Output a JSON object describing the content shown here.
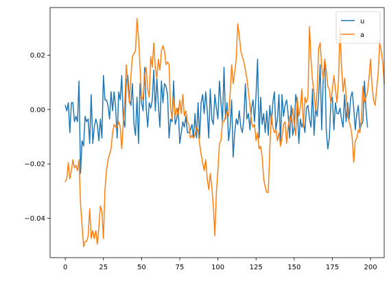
{
  "chart_data": {
    "type": "line",
    "title": "",
    "xlabel": "",
    "ylabel": "",
    "xlim": [
      -9.95,
      208.95
    ],
    "ylim": [
      -0.0545,
      0.0375
    ],
    "xticks": [
      0,
      25,
      50,
      75,
      100,
      125,
      150,
      175,
      200
    ],
    "yticks": [
      -0.04,
      -0.02,
      0.0,
      0.02
    ],
    "xtick_labels": [
      "0",
      "25",
      "50",
      "75",
      "100",
      "125",
      "150",
      "175",
      "200"
    ],
    "ytick_labels": [
      "−0.04",
      "−0.02",
      "0.00",
      "0.02"
    ],
    "grid": false,
    "legend_position": "upper right",
    "series": [
      {
        "name": "u",
        "color": "#1f77b4",
        "values": [
          0.0015,
          -0.0005,
          0.0025,
          -0.0085,
          0.0025,
          0.0025,
          -0.0045,
          -0.0025,
          -0.0045,
          0.0105,
          -0.0235,
          -0.0115,
          -0.0135,
          -0.0025,
          -0.0045,
          -0.0035,
          -0.0125,
          0.0055,
          -0.0125,
          -0.0065,
          -0.0035,
          -0.0055,
          -0.0115,
          -0.0035,
          -0.0105,
          0.0125,
          0.0035,
          0.0035,
          0.0015,
          -0.0035,
          0.0065,
          -0.0005,
          0.0065,
          0.0005,
          -0.0105,
          0.0065,
          0.0035,
          0.0125,
          -0.0035,
          -0.0065,
          0.0105,
          0.0125,
          0.0035,
          0.0015,
          0.0095,
          -0.0055,
          -0.0095,
          0.0045,
          -0.0125,
          0.0095,
          0.0025,
          -0.0005,
          0.0155,
          0.0005,
          -0.0065,
          0.0025,
          0.0005,
          0.0035,
          0.0145,
          -0.0005,
          0.0115,
          0.0015,
          -0.0065,
          0.0105,
          0.0025,
          0.0095,
          0.0085,
          0.0055,
          -0.0105,
          -0.0035,
          -0.0045,
          0.0105,
          -0.0055,
          -0.0035,
          0.0005,
          -0.0125,
          -0.0085,
          -0.0045,
          -0.0065,
          -0.0025,
          -0.0085,
          -0.0085,
          -0.0075,
          -0.0055,
          -0.0105,
          -0.0015,
          -0.0105,
          0.0025,
          -0.0105,
          0.0025,
          0.0055,
          -0.0015,
          0.0065,
          -0.0005,
          -0.0105,
          0.0075,
          -0.0035,
          -0.0055,
          0.0055,
          0.0005,
          -0.0035,
          0.0105,
          0.0025,
          -0.0045,
          0.0155,
          -0.0035,
          0.0025,
          -0.0115,
          -0.0065,
          0.0035,
          -0.0175,
          -0.0085,
          -0.0035,
          -0.0055,
          -0.0005,
          -0.0065,
          -0.0085,
          -0.0035,
          0.0095,
          -0.0035,
          -0.0015,
          -0.0075,
          0.0005,
          0.0035,
          -0.0045,
          0.0055,
          0.0185,
          -0.0105,
          0.0045,
          -0.0055,
          -0.0015,
          -0.0085,
          -0.0005,
          -0.0095,
          0.0015,
          -0.0055,
          0.0025,
          0.0065,
          -0.0075,
          -0.0035,
          0.0055,
          -0.0125,
          0.0055,
          -0.0025,
          0.0015,
          0.0035,
          -0.0015,
          -0.0105,
          0.0015,
          -0.0095,
          -0.0065,
          0.0055,
          0.0015,
          -0.0125,
          -0.0035,
          -0.0065,
          -0.0045,
          -0.0085,
          0.0005,
          0.0015,
          -0.0035,
          -0.0065,
          0.0075,
          -0.0095,
          0.0005,
          -0.0025,
          0.0045,
          0.0165,
          -0.0075,
          0.0115,
          0.0185,
          -0.0075,
          -0.0145,
          -0.0105,
          0.0025,
          0.0045,
          -0.0075,
          0.0025,
          -0.0015,
          -0.0015,
          0.0005,
          -0.0035,
          -0.0065,
          0.0055,
          -0.0045,
          0.0025,
          -0.0035,
          0.0045,
          0.0065,
          0.0005,
          -0.0075,
          -0.0015,
          0.0015,
          -0.0075,
          -0.0055,
          -0.0045,
          0.0105,
          0.0005,
          -0.0065
        ]
      },
      {
        "name": "a",
        "color": "#ff7f0e",
        "values": [
          -0.0265,
          -0.0255,
          -0.0195,
          -0.0255,
          -0.0225,
          -0.0185,
          -0.0215,
          -0.0205,
          -0.0225,
          -0.0185,
          -0.0345,
          -0.0425,
          -0.0505,
          -0.0485,
          -0.0485,
          -0.0465,
          -0.0365,
          -0.0475,
          -0.0445,
          -0.0475,
          -0.0445,
          -0.0495,
          -0.0435,
          -0.0355,
          -0.0375,
          -0.0475,
          -0.0295,
          -0.0225,
          -0.0185,
          -0.0165,
          -0.0145,
          -0.0085,
          -0.0055,
          -0.0065,
          -0.0065,
          -0.0045,
          -0.0065,
          -0.0145,
          -0.0045,
          0.0025,
          0.0165,
          0.0085,
          0.0025,
          0.0125,
          0.0195,
          0.0205,
          0.0215,
          0.0335,
          0.0265,
          0.0155,
          0.0035,
          0.0045,
          0.0125,
          0.0155,
          0.0075,
          0.0045,
          0.0195,
          0.0155,
          0.0245,
          0.0155,
          0.0115,
          0.0185,
          0.0145,
          0.0215,
          0.0235,
          0.0215,
          0.0165,
          0.0175,
          0.0165,
          0.0005,
          -0.0035,
          0.0045,
          -0.0025,
          0.0005,
          -0.0025,
          0.0035,
          -0.0015,
          0.0055,
          -0.0025,
          -0.0005,
          -0.0045,
          -0.0055,
          -0.0105,
          -0.0095,
          -0.0105,
          -0.0095,
          -0.0065,
          -0.0075,
          -0.0125,
          -0.0165,
          -0.0195,
          -0.0225,
          -0.0185,
          -0.0255,
          -0.0295,
          -0.0235,
          -0.0285,
          -0.0355,
          -0.0465,
          -0.0305,
          -0.0225,
          -0.0125,
          -0.0115,
          -0.0045,
          -0.0045,
          -0.0025,
          -0.0005,
          -0.0025,
          0.0055,
          0.0165,
          0.0095,
          0.0135,
          0.0185,
          0.0315,
          0.0275,
          0.0215,
          0.0195,
          0.0175,
          0.0145,
          0.0115,
          0.0065,
          0.0015,
          -0.0045,
          -0.0065,
          -0.0055,
          -0.0115,
          -0.0085,
          -0.0145,
          -0.0135,
          -0.0175,
          -0.0255,
          -0.0285,
          -0.0305,
          -0.0305,
          -0.0145,
          -0.0015,
          -0.0065,
          -0.0085,
          -0.0075,
          -0.0115,
          -0.0085,
          -0.0135,
          -0.0105,
          -0.0055,
          -0.0045,
          -0.0125,
          -0.0065,
          -0.0025,
          -0.0045,
          0.0005,
          -0.0055,
          -0.0095,
          0.0045,
          -0.0025,
          0.0005,
          0.0075,
          -0.0065,
          0.0045,
          0.0025,
          0.0045,
          0.0305,
          0.0185,
          0.0105,
          0.0065,
          -0.0005,
          0.0065,
          0.0225,
          0.0245,
          0.0155,
          0.0115,
          0.0185,
          0.0145,
          0.0085,
          0.0075,
          0.0025,
          0.0075,
          0.0125,
          0.0075,
          0.0025,
          0.0105,
          0.0305,
          0.0155,
          0.0065,
          0.0115,
          0.0055,
          -0.0025,
          -0.0045,
          -0.0065,
          -0.0105,
          -0.0195,
          -0.0115,
          -0.0105,
          -0.0075,
          -0.0085,
          -0.0035,
          0.0085,
          0.0025,
          0.0045,
          0.0065,
          0.0115,
          0.0185,
          0.0085,
          0.0035,
          0.0015,
          0.0075,
          0.0135,
          0.0245,
          0.0215,
          0.0175,
          0.0095
        ]
      }
    ]
  }
}
